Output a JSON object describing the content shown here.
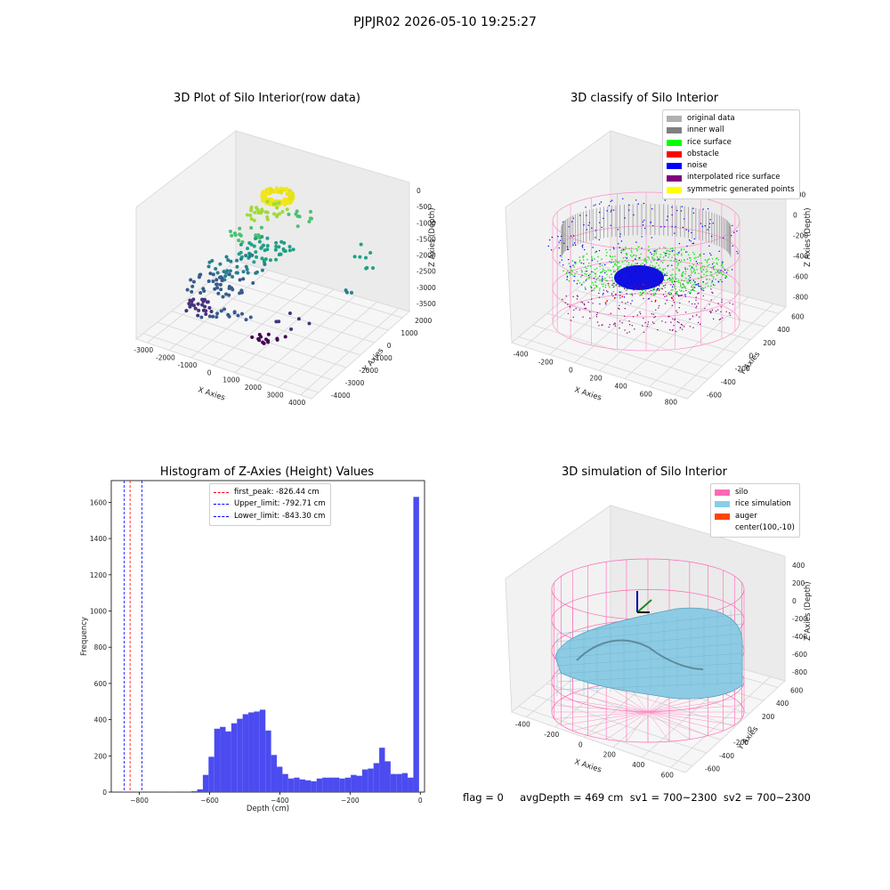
{
  "suptitle": "PJPJR02 2026-05-10 19:25:27",
  "footer": "flag = 0     avgDepth = 469 cm  sv1 = 700~2300  sv2 = 700~2300",
  "chart_data": [
    {
      "type": "scatter",
      "title": "3D Plot of Silo Interior(row data)",
      "xlabel": "X Axies",
      "ylabel": "Y Axies",
      "zlabel": "Z Axies (Depth)",
      "x_ticks": [
        "-3000",
        "-2000",
        "-1000",
        "0",
        "1000",
        "2000",
        "3000",
        "4000"
      ],
      "y_ticks": [
        "2000",
        "1000",
        "0",
        "-1000",
        "-2000",
        "-3000",
        "-4000"
      ],
      "z_ticks": [
        "0",
        "-500",
        "-1000",
        "-1500",
        "-2000",
        "-2500",
        "-3000",
        "-3500"
      ],
      "colormap": "viridis (by depth)"
    },
    {
      "type": "scatter",
      "title": "3D classify of Silo Interior",
      "xlabel": "X Axies",
      "ylabel": "Y Axies",
      "zlabel": "Z Axies (Depth)",
      "x_ticks": [
        "-400",
        "-200",
        "0",
        "200",
        "400",
        "600",
        "800"
      ],
      "y_ticks": [
        "600",
        "400",
        "200",
        "0",
        "-200",
        "-400",
        "-600"
      ],
      "z_ticks": [
        "200",
        "0",
        "-200",
        "-400",
        "-600",
        "-800"
      ],
      "legend": [
        {
          "label": "original data",
          "color": "#b0b0b0"
        },
        {
          "label": "inner wall",
          "color": "#808080"
        },
        {
          "label": "rice surface",
          "color": "#00ff00"
        },
        {
          "label": "obstacle",
          "color": "#ff0000"
        },
        {
          "label": "noise",
          "color": "#0000ff"
        },
        {
          "label": "interpolated rice surface",
          "color": "#800080"
        },
        {
          "label": "symmetric generated points",
          "color": "#ffff00"
        }
      ]
    },
    {
      "type": "bar",
      "title": "Histogram of Z-Axies (Height) Values",
      "xlabel": "Depth (cm)",
      "ylabel": "Frequency",
      "xlim": [
        -880,
        12
      ],
      "ylim": [
        0,
        1720
      ],
      "x_ticks": [
        -800,
        -600,
        -400,
        -200,
        0
      ],
      "y_ticks": [
        0,
        200,
        400,
        600,
        800,
        1000,
        1200,
        1400,
        1600
      ],
      "bin_start": -846,
      "bin_width": 16.2,
      "values": [
        0,
        0,
        0,
        0,
        0,
        0,
        0,
        0,
        3,
        0,
        0,
        0,
        5,
        15,
        95,
        195,
        350,
        360,
        335,
        380,
        405,
        430,
        440,
        445,
        455,
        340,
        205,
        140,
        100,
        75,
        80,
        70,
        65,
        60,
        75,
        80,
        80,
        80,
        75,
        80,
        95,
        90,
        125,
        130,
        160,
        245,
        170,
        100,
        100,
        105,
        80,
        1630
      ],
      "lines": [
        {
          "label": "first_peak: -826.44 cm",
          "x": -826.44,
          "color": "#ff0000"
        },
        {
          "label": "Upper_limit: -792.71 cm",
          "x": -792.71,
          "color": "#0000ff"
        },
        {
          "label": "Lower_limit: -843.30 cm",
          "x": -843.3,
          "color": "#0000ff"
        }
      ],
      "bar_color": "#4b4bf0"
    },
    {
      "type": "surface",
      "title": "3D simulation of Silo Interior",
      "xlabel": "X Axies",
      "ylabel": "Y Axies",
      "zlabel": "Z Axies (Depth)",
      "x_ticks": [
        "-400",
        "-200",
        "0",
        "200",
        "400",
        "600"
      ],
      "y_ticks": [
        "600",
        "400",
        "200",
        "0",
        "-200",
        "-400",
        "-600"
      ],
      "z_ticks": [
        "400",
        "200",
        "0",
        "-200",
        "-400",
        "-600",
        "-800"
      ],
      "legend": [
        {
          "label": "silo",
          "color": "#ff69b4"
        },
        {
          "label": "rice simulation",
          "color": "#87ceeb"
        },
        {
          "label": "auger",
          "color": "#ff4500"
        },
        {
          "label": "center(100,-10)",
          "color": ""
        }
      ]
    }
  ]
}
